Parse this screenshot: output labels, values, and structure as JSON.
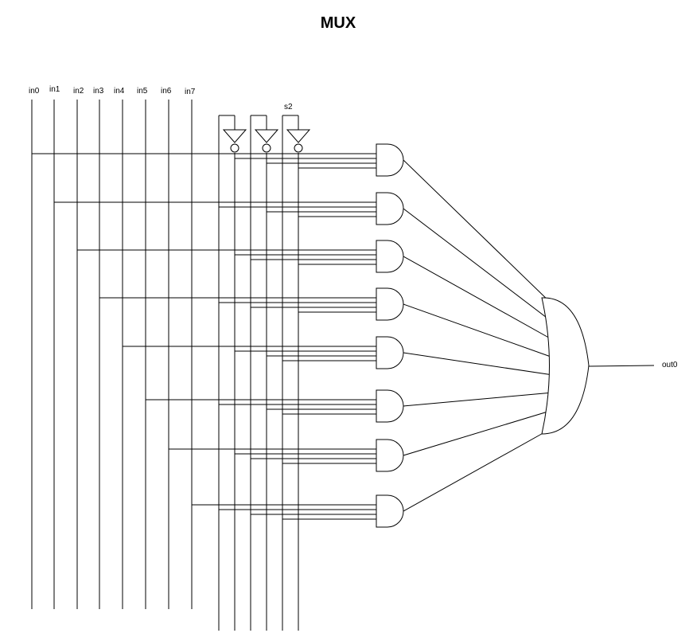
{
  "diagram": {
    "title": "MUX",
    "inputs": [
      "in0",
      "in1",
      "in2",
      "in3",
      "in4",
      "in5",
      "in6",
      "in7"
    ],
    "select_label": "s2",
    "output_label": "out0",
    "select_bits": 3,
    "and_gate_count": 8,
    "gate_types": [
      "not-gate",
      "and-gate",
      "or-gate"
    ]
  }
}
